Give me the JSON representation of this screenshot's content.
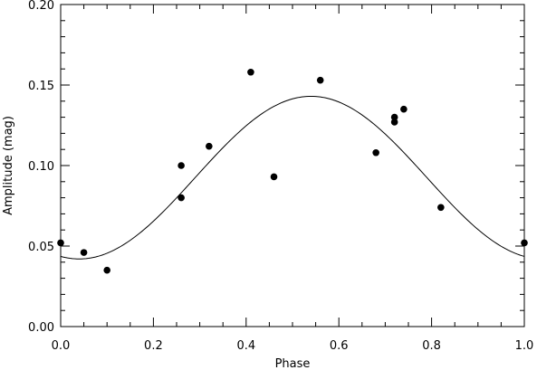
{
  "chart_data": {
    "type": "scatter",
    "title": "",
    "xlabel": "Phase",
    "ylabel": "Amplitude (mag)",
    "xlim": [
      0.0,
      1.0
    ],
    "ylim": [
      0.0,
      0.2
    ],
    "xticks": [
      "0.0",
      "0.2",
      "0.4",
      "0.6",
      "0.8",
      "1.0"
    ],
    "yticks": [
      "0.00",
      "0.05",
      "0.10",
      "0.15",
      "0.20"
    ],
    "grid": false,
    "legend": "none",
    "series": [
      {
        "type": "scatter",
        "color": "#000000",
        "x": [
          0.0,
          0.05,
          0.1,
          0.26,
          0.26,
          0.32,
          0.41,
          0.46,
          0.56,
          0.68,
          0.72,
          0.72,
          0.74,
          0.82,
          1.0
        ],
        "y": [
          0.052,
          0.046,
          0.035,
          0.1,
          0.08,
          0.112,
          0.158,
          0.093,
          0.153,
          0.108,
          0.13,
          0.127,
          0.135,
          0.074,
          0.052
        ]
      },
      {
        "type": "line",
        "color": "#000000",
        "model": "sinusoid",
        "mean": 0.0925,
        "amplitude": 0.0505,
        "peak_phase": 0.54
      }
    ]
  }
}
